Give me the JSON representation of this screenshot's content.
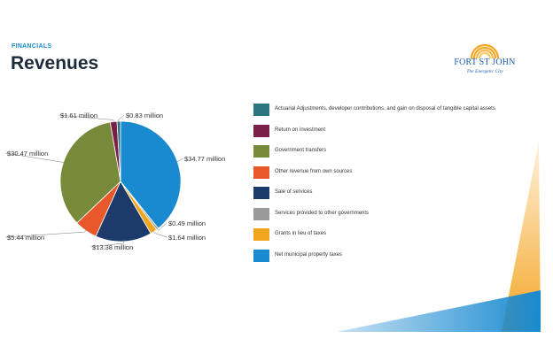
{
  "header": {
    "section": "FINANCIALS",
    "title": "Revenues"
  },
  "logo": {
    "name": "FORT ST JOHN",
    "tagline": "The Energetic City"
  },
  "colors": {
    "accent": "#1a8ad0",
    "logo_blue": "#1c5fa8",
    "logo_orange": "#f5a623"
  },
  "chart_data": {
    "type": "pie",
    "slices": [
      {
        "name": "Net municipal property taxes",
        "value": 34.77,
        "label": "$34.77 million",
        "color": "#1a8ad0"
      },
      {
        "name": "Services provided to other governments",
        "value": 0.49,
        "label": "$0.49 million",
        "color": "#9a9a9a"
      },
      {
        "name": "Grants in lieu of taxes",
        "value": 1.64,
        "label": "$1.64 million",
        "color": "#f2a61f"
      },
      {
        "name": "Sale of services",
        "value": 13.38,
        "label": "$13.38 million",
        "color": "#1d3b6a"
      },
      {
        "name": "Other revenue from own sources",
        "value": 5.44,
        "label": "$5.44 million",
        "color": "#e8582a"
      },
      {
        "name": "Government transfers",
        "value": 30.47,
        "label": "$30.47 million",
        "color": "#778a3a"
      },
      {
        "name": "Return on investment",
        "value": 1.61,
        "label": "$1.61 million",
        "color": "#7a1f48"
      },
      {
        "name": "Actuarial Adjustments, developer contributions, and gain on disposal of tangible capital assets",
        "value": 0.83,
        "label": "$0.83 million",
        "color": "#2a7480"
      }
    ]
  },
  "legend": [
    {
      "label": "Actuarial Adjustments, developer contributions, and gain on disposal of tangible capital assets",
      "color": "#2a7480"
    },
    {
      "label": "Return on investment",
      "color": "#7a1f48"
    },
    {
      "label": "Government transfers",
      "color": "#778a3a"
    },
    {
      "label": "Other revenue from own sources",
      "color": "#e8582a"
    },
    {
      "label": "Sale of services",
      "color": "#1d3b6a"
    },
    {
      "label": "Services provided to other governments",
      "color": "#9a9a9a"
    },
    {
      "label": "Grants in lieu of taxes",
      "color": "#f2a61f"
    },
    {
      "label": "Net municipal property taxes",
      "color": "#1a8ad0"
    }
  ]
}
